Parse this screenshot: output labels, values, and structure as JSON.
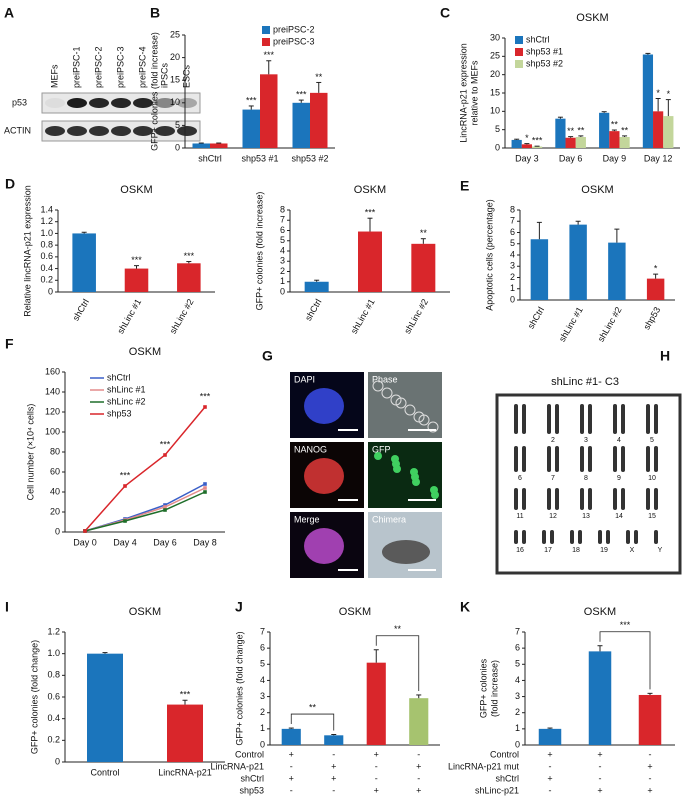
{
  "blot": {
    "panel": "A",
    "lanes": [
      "MEFs",
      "preiPSC-1",
      "preiPSC-2",
      "preiPSC-3",
      "preiPSC-4",
      "iPSCs",
      "ESCs"
    ],
    "rows": [
      "p53",
      "ACTIN"
    ]
  },
  "images": {
    "panel": "G",
    "labels": [
      "DAPI",
      "Phase",
      "NANOG",
      "GFP",
      "Merge",
      "Chimera"
    ]
  },
  "karyotype": {
    "panel": "H",
    "title": "shLinc #1- C3",
    "chromosomes": [
      "2",
      "3",
      "4",
      "5",
      "6",
      "7",
      "8",
      "9",
      "10",
      "11",
      "12",
      "13",
      "14",
      "15",
      "16",
      "17",
      "18",
      "19",
      "X",
      "Y"
    ]
  },
  "chart_data": [
    {
      "type": "bar",
      "panel": "B",
      "ylabel": [
        "GFP+ colonies (fold increase)"
      ],
      "categories": [
        "shCtrl",
        "shp53 #1",
        "shp53 #2"
      ],
      "series": [
        {
          "name": "preiPSC-2",
          "color": "#1b75bc",
          "values": [
            1,
            8.5,
            10
          ],
          "errors": [
            0.1,
            0.8,
            0.6
          ],
          "significance": [
            null,
            "***",
            "***"
          ]
        },
        {
          "name": "preiPSC-3",
          "color": "#d9262b",
          "values": [
            1,
            16.3,
            12.2
          ],
          "errors": [
            0.1,
            3,
            2.3
          ],
          "significance": [
            null,
            "***",
            "**"
          ]
        }
      ],
      "ylim": [
        0,
        25
      ],
      "yticks": [
        0,
        5,
        10,
        15,
        20,
        25
      ]
    },
    {
      "type": "bar",
      "panel": "C",
      "title": "OSKM",
      "ylabel": [
        "LincRNA-p21 expression",
        "relative to MEFs"
      ],
      "categories": [
        "Day 3",
        "Day 6",
        "Day 9",
        "Day 12"
      ],
      "series": [
        {
          "name": "shCtrl",
          "color": "#1b75bc",
          "values": [
            2.2,
            8,
            9.6,
            25.5
          ],
          "errors": [
            0.2,
            0.4,
            0.3,
            0.3
          ],
          "significance": [
            null,
            null,
            null,
            null
          ]
        },
        {
          "name": "shp53 #1",
          "color": "#d9262b",
          "values": [
            1,
            2.8,
            4.6,
            10
          ],
          "errors": [
            0.2,
            0.3,
            0.3,
            3.5
          ],
          "significance": [
            "*",
            "**",
            "**",
            "*"
          ]
        },
        {
          "name": "shp53 #2",
          "color": "#c3d69b",
          "values": [
            0.4,
            3,
            3,
            8.7
          ],
          "errors": [
            0.1,
            0.3,
            0.3,
            4.5
          ],
          "significance": [
            "***",
            "**",
            "**",
            "*"
          ]
        }
      ],
      "ylim": [
        0,
        30
      ],
      "yticks": [
        0,
        5,
        10,
        15,
        20,
        25,
        30
      ]
    },
    {
      "type": "bar",
      "panel": "D",
      "title": "OSKM",
      "ylabel": [
        "Relative lincRNA-p21 expression"
      ],
      "categories": [
        "shCtrl",
        "shLinc #1",
        "shLinc #2"
      ],
      "values": [
        1,
        0.4,
        0.49
      ],
      "errors": [
        0.02,
        0.05,
        0.03
      ],
      "colors": [
        "#1b75bc",
        "#d9262b",
        "#d9262b"
      ],
      "significance": [
        null,
        "***",
        "***"
      ],
      "ylim": [
        0,
        1.4
      ],
      "yticks": [
        0,
        0.2,
        0.4,
        0.6,
        0.8,
        {
          "value": 1,
          "label": "1.0"
        },
        1.2,
        1.4
      ]
    },
    {
      "type": "bar",
      "title": "OSKM",
      "ylabel": [
        "GFP+ colonies (fold increase)"
      ],
      "categories": [
        "shCtrl",
        "shLinc #1",
        "shLinc #2"
      ],
      "values": [
        1,
        5.9,
        4.7
      ],
      "errors": [
        0.15,
        1.3,
        0.5
      ],
      "colors": [
        "#1b75bc",
        "#d9262b",
        "#d9262b"
      ],
      "significance": [
        null,
        "***",
        "**"
      ],
      "ylim": [
        0,
        8
      ],
      "yticks": [
        0,
        1,
        2,
        3,
        4,
        5,
        6,
        7,
        8
      ]
    },
    {
      "type": "bar",
      "panel": "E",
      "title": "OSKM",
      "ylabel": [
        "Apoptotic cells (percentage)"
      ],
      "categories": [
        "shCtrl",
        "shLinc #1",
        "shLinc #2",
        "shp53"
      ],
      "values": [
        5.4,
        6.7,
        5.1,
        1.9
      ],
      "errors": [
        1.5,
        0.3,
        1.2,
        0.4
      ],
      "colors": [
        "#1b75bc",
        "#1b75bc",
        "#1b75bc",
        "#d9262b"
      ],
      "significance": [
        null,
        null,
        null,
        "*"
      ],
      "ylim": [
        0,
        8
      ],
      "yticks": [
        0,
        1,
        2,
        3,
        4,
        5,
        6,
        7,
        8
      ]
    },
    {
      "type": "line",
      "panel": "F",
      "title": "OSKM",
      "ylabel": [
        "Cell number (×10⁴ cells)"
      ],
      "categories": [
        "Day 0",
        "Day 4",
        "Day 6",
        "Day 8"
      ],
      "series": [
        {
          "name": "shCtrl",
          "color": "#3a5fc8",
          "values": [
            1,
            13,
            27,
            48
          ]
        },
        {
          "name": "shLinc #1",
          "color": "#e38a8a",
          "values": [
            1,
            12,
            25,
            44
          ]
        },
        {
          "name": "shLinc #2",
          "color": "#1f6e2a",
          "values": [
            1,
            11,
            22,
            40
          ]
        },
        {
          "name": "shp53",
          "color": "#d9262b",
          "values": [
            1,
            46,
            77,
            125
          ],
          "significance": [
            null,
            "***",
            "***",
            "***"
          ]
        }
      ],
      "ylim": [
        0,
        160
      ],
      "yticks": [
        0,
        20,
        40,
        60,
        80,
        100,
        120,
        140,
        160
      ]
    },
    {
      "type": "bar",
      "panel": "I",
      "title": "OSKM",
      "ylabel": [
        "GFP+ colonies (fold change)"
      ],
      "categories": [
        "Control",
        "LincRNA-p21"
      ],
      "values": [
        1,
        0.53
      ],
      "errors": [
        0.01,
        0.04
      ],
      "colors": [
        "#1b75bc",
        "#d9262b"
      ],
      "significance": [
        null,
        "***"
      ],
      "ylim": [
        0,
        1.2
      ],
      "yticks": [
        0,
        0.2,
        0.4,
        0.6,
        0.8,
        {
          "value": 1,
          "label": "1.0"
        },
        1.2
      ]
    },
    {
      "type": "bar",
      "panel": "J",
      "title": "OSKM",
      "ylabel": [
        "GFP+ colonies (fold change)"
      ],
      "values": [
        1,
        0.6,
        5.1,
        2.9
      ],
      "errors": [
        0.05,
        0.05,
        0.8,
        0.2
      ],
      "colors": [
        "#1b75bc",
        "#1b75bc",
        "#d9262b",
        "#a6c36f"
      ],
      "conditions": [
        {
          "name": "Control",
          "marks": [
            "+",
            "-",
            "+",
            "-"
          ]
        },
        {
          "name": "LincRNA-p21",
          "marks": [
            "-",
            "+",
            "-",
            "+"
          ]
        },
        {
          "name": "shCtrl",
          "marks": [
            "+",
            "+",
            "-",
            "-"
          ]
        },
        {
          "name": "shp53",
          "marks": [
            "-",
            "-",
            "+",
            "+"
          ]
        }
      ],
      "brackets": [
        "**",
        "**"
      ],
      "ylim": [
        0,
        7
      ],
      "yticks": [
        0,
        1,
        2,
        3,
        4,
        5,
        6,
        7
      ]
    },
    {
      "type": "bar",
      "panel": "K",
      "title": "OSKM",
      "ylabel": [
        "GFP+ colonies",
        "(fold increase)"
      ],
      "values": [
        1,
        5.8,
        3.1
      ],
      "errors": [
        0.05,
        0.35,
        0.1
      ],
      "colors": [
        "#1b75bc",
        "#1b75bc",
        "#d9262b"
      ],
      "conditions": [
        {
          "name": "Control",
          "marks": [
            "+",
            "+",
            "-"
          ]
        },
        {
          "name": "LincRNA-p21 mut",
          "marks": [
            "-",
            "-",
            "+"
          ]
        },
        {
          "name": "shCtrl",
          "marks": [
            "+",
            "-",
            "-"
          ]
        },
        {
          "name": "shLinc-p21",
          "marks": [
            "-",
            "+",
            "+"
          ]
        }
      ],
      "brackets": [
        "***"
      ],
      "ylim": [
        0,
        7
      ],
      "yticks": [
        0,
        1,
        2,
        3,
        4,
        5,
        6,
        7
      ]
    }
  ]
}
